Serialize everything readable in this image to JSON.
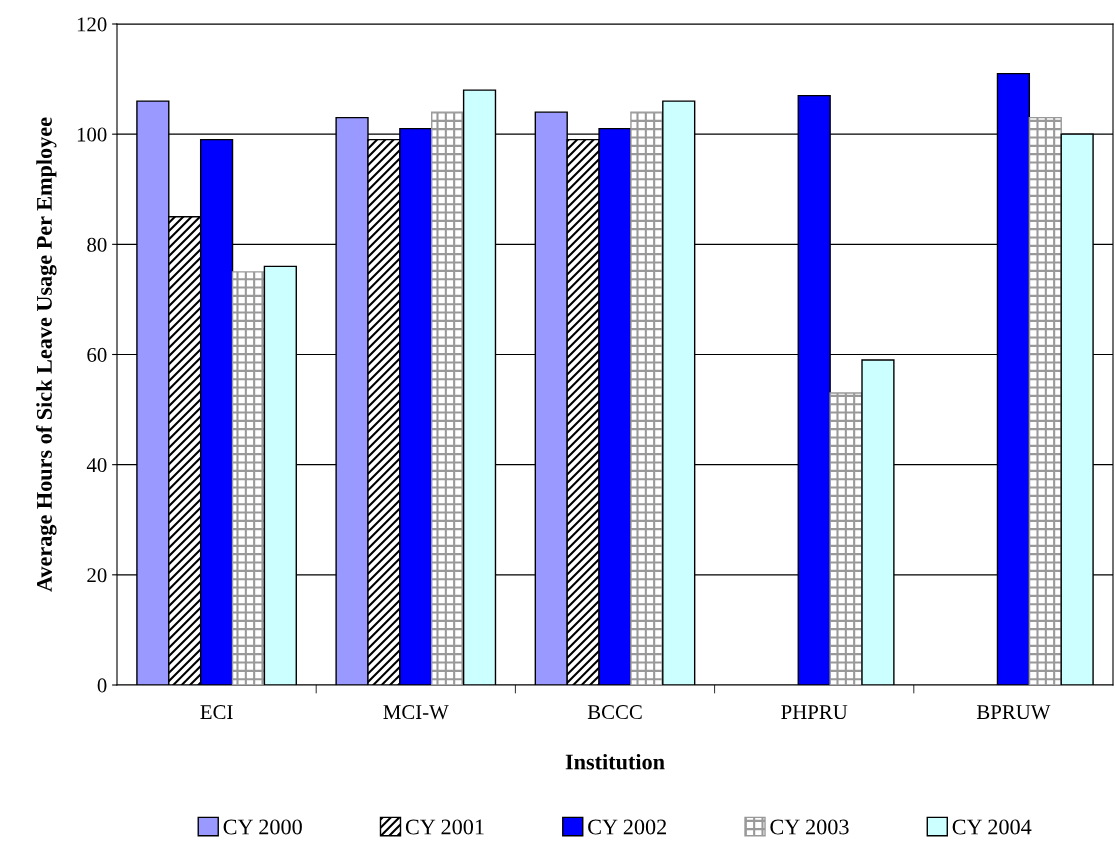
{
  "chart_data": {
    "type": "bar",
    "xlabel": "Institution",
    "ylabel": "Average Hours of Sick Leave Usage Per Employee",
    "categories": [
      "ECI",
      "MCI-W",
      "BCCC",
      "PHPRU",
      "BPRUW"
    ],
    "series": [
      {
        "name": "CY 2000",
        "color": "#9999ff",
        "values": [
          106,
          103,
          104,
          null,
          null
        ]
      },
      {
        "name": "CY 2001",
        "color": "#000000",
        "values": [
          85,
          99,
          99,
          null,
          null
        ]
      },
      {
        "name": "CY 2002",
        "color": "#0000ff",
        "values": [
          99,
          101,
          101,
          107,
          111
        ]
      },
      {
        "name": "CY 2003",
        "color": "#999999",
        "values": [
          75,
          104,
          104,
          53,
          103
        ]
      },
      {
        "name": "CY 2004",
        "color": "#ccffff",
        "values": [
          76,
          108,
          106,
          59,
          100
        ]
      }
    ],
    "ylim": [
      0,
      120
    ],
    "yticks": [
      0,
      20,
      40,
      60,
      80,
      100,
      120
    ],
    "grid": "y",
    "legend": "bottom"
  }
}
